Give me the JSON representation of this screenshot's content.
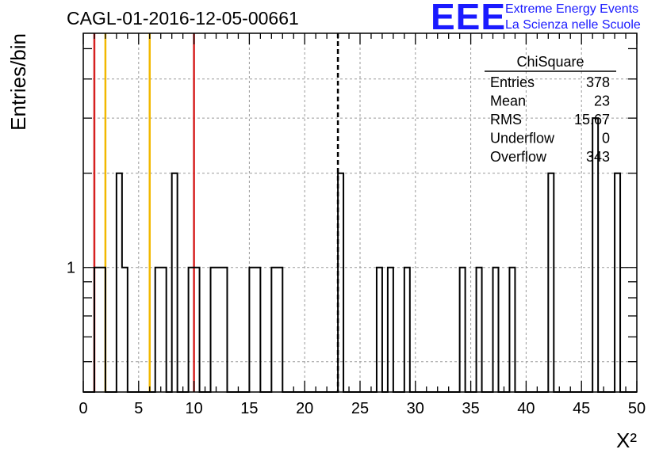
{
  "title": "CAGL-01-2016-12-05-00661",
  "logo": {
    "mark": "EEE",
    "line1": "Extreme Energy Events",
    "line2": "La Scienza nelle Scuole",
    "color": "#1a1aff"
  },
  "chart_data": {
    "type": "bar",
    "style": "step-histogram",
    "xlabel": "X²",
    "ylabel": "Entries/bin",
    "xlim": [
      0,
      50
    ],
    "ylim_log": [
      0.4,
      5.6
    ],
    "yscale": "log",
    "grid": true,
    "bin_width": 0.5,
    "x_ticks": [
      "0",
      "5",
      "10",
      "15",
      "20",
      "25",
      "30",
      "35",
      "40",
      "45",
      "50"
    ],
    "y_ticks": [
      "1"
    ],
    "bins": [
      [
        1.0,
        1
      ],
      [
        1.5,
        1
      ],
      [
        3.0,
        2
      ],
      [
        3.5,
        1
      ],
      [
        6.5,
        1
      ],
      [
        7.0,
        1
      ],
      [
        8.0,
        2
      ],
      [
        9.5,
        1
      ],
      [
        10.0,
        1
      ],
      [
        11.5,
        1
      ],
      [
        12.0,
        1
      ],
      [
        12.5,
        1
      ],
      [
        15.0,
        1
      ],
      [
        15.5,
        1
      ],
      [
        17.0,
        1
      ],
      [
        17.5,
        1
      ],
      [
        23.0,
        2
      ],
      [
        26.5,
        1
      ],
      [
        27.5,
        1
      ],
      [
        29.0,
        1
      ],
      [
        34.0,
        1
      ],
      [
        35.5,
        1
      ],
      [
        37.0,
        1
      ],
      [
        38.5,
        1
      ],
      [
        42.0,
        2
      ],
      [
        46.0,
        3
      ],
      [
        48.0,
        2
      ]
    ],
    "vlines": [
      {
        "x": 1,
        "color": "#d62020"
      },
      {
        "x": 2,
        "color": "#f2b800"
      },
      {
        "x": 6,
        "color": "#f2b800"
      },
      {
        "x": 10,
        "color": "#d62020"
      },
      {
        "x": 23,
        "color": "#000000",
        "dashed": true
      }
    ],
    "legend_position": "top-right",
    "stats": {
      "name": "ChiSquare",
      "rows": [
        {
          "label": "Entries",
          "value": "378"
        },
        {
          "label": "Mean",
          "value": "23"
        },
        {
          "label": "RMS",
          "value": "15.67"
        },
        {
          "label": "Underflow",
          "value": "0"
        },
        {
          "label": "Overflow",
          "value": "343"
        }
      ]
    }
  }
}
